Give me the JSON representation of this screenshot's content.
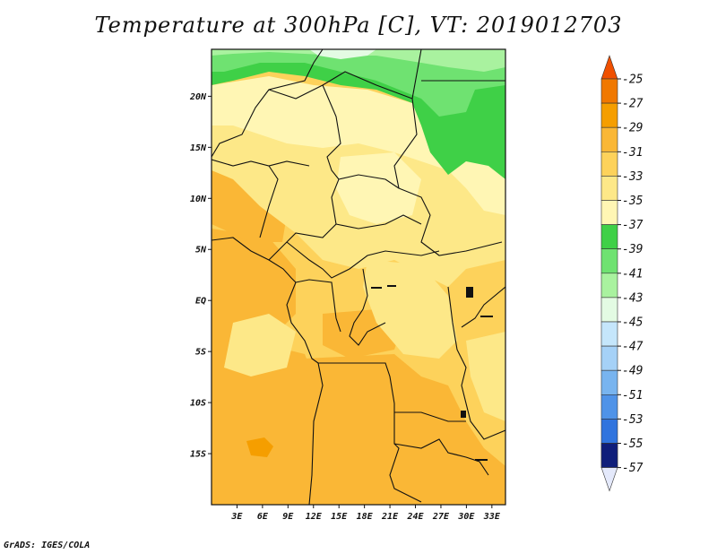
{
  "title": "Temperature at 300hPa [C], VT: 2019012703",
  "credit": "GrADS: IGES/COLA",
  "map": {
    "lat_ticks": [
      {
        "label": "20N",
        "lat": 20
      },
      {
        "label": "15N",
        "lat": 15
      },
      {
        "label": "10N",
        "lat": 10
      },
      {
        "label": "5N",
        "lat": 5
      },
      {
        "label": "EQ",
        "lat": 0
      },
      {
        "label": "5S",
        "lat": -5
      },
      {
        "label": "10S",
        "lat": -10
      },
      {
        "label": "15S",
        "lat": -15
      }
    ],
    "lon_ticks": [
      {
        "label": "3E",
        "lon": 3
      },
      {
        "label": "6E",
        "lon": 6
      },
      {
        "label": "9E",
        "lon": 9
      },
      {
        "label": "12E",
        "lon": 12
      },
      {
        "label": "15E",
        "lon": 15
      },
      {
        "label": "18E",
        "lon": 18
      },
      {
        "label": "21E",
        "lon": 21
      },
      {
        "label": "24E",
        "lon": 24
      },
      {
        "label": "27E",
        "lon": 27
      },
      {
        "label": "30E",
        "lon": 30
      },
      {
        "label": "33E",
        "lon": 33
      }
    ],
    "lon_range": [
      0,
      34.6
    ],
    "lat_range": [
      -20,
      24.6
    ]
  },
  "colorbar": {
    "levels": [
      {
        "label": "-25",
        "color": "#f07800"
      },
      {
        "label": "-27",
        "color": "#f59e00"
      },
      {
        "label": "-29",
        "color": "#fab736"
      },
      {
        "label": "-31",
        "color": "#fdd25b"
      },
      {
        "label": "-33",
        "color": "#fde888"
      },
      {
        "label": "-35",
        "color": "#fff6b4"
      },
      {
        "label": "-37",
        "color": "#3fd047"
      },
      {
        "label": "-39",
        "color": "#6fe271"
      },
      {
        "label": "-41",
        "color": "#a9f29f"
      },
      {
        "label": "-43",
        "color": "#e3fbe3"
      },
      {
        "label": "-45",
        "color": "#c5e6fb"
      },
      {
        "label": "-47",
        "color": "#a5d1f7"
      },
      {
        "label": "-49",
        "color": "#78b4ef"
      },
      {
        "label": "-51",
        "color": "#4f93e8"
      },
      {
        "label": "-53",
        "color": "#3074de"
      },
      {
        "label": "-55",
        "color": "#1f53c2"
      },
      {
        "label": "-57",
        "color": "#16349e"
      }
    ],
    "top_color": "#f05000",
    "bottom_color": "#0f1e7a",
    "tail_color": "#e4e9fb"
  }
}
